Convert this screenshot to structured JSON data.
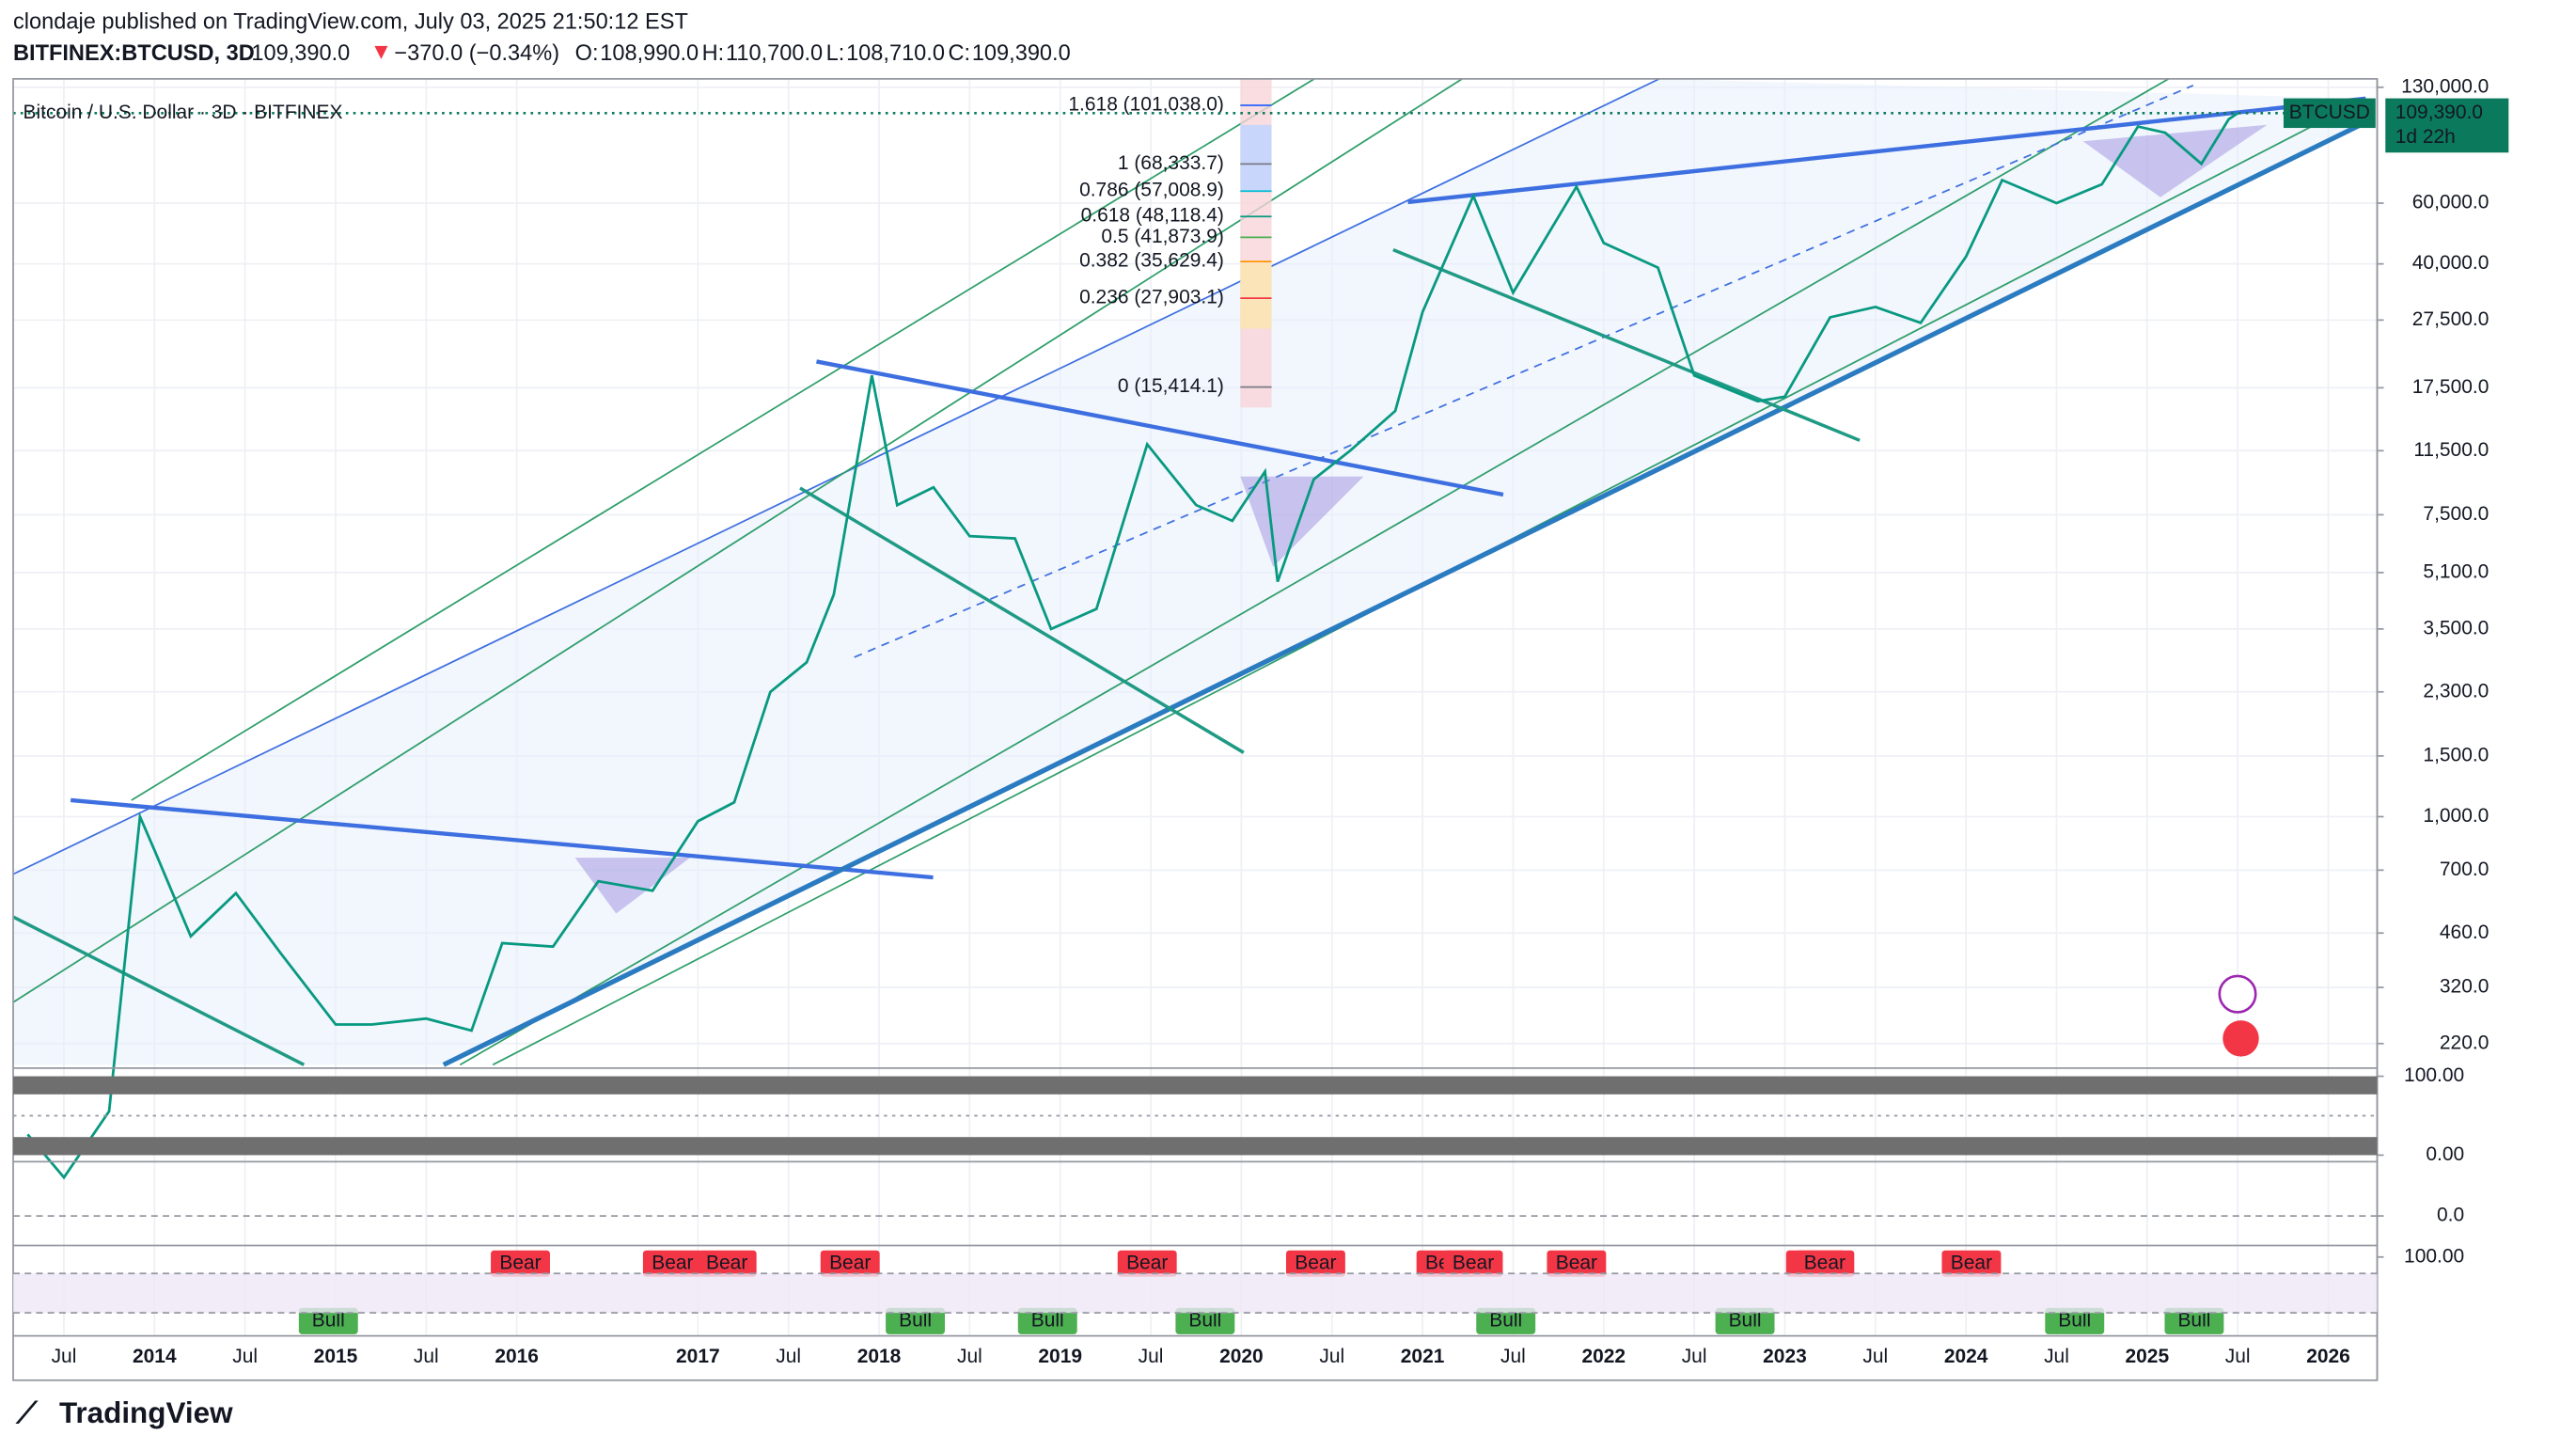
{
  "header": {
    "published": "clondaje published on TradingView.com, July 03, 2025 21:50:12 EST",
    "symbol": "BITFINEX:BTCUSD, 3D",
    "price": "109,390.0",
    "change": "−370.0 (−0.34%)",
    "ohlc": [
      {
        "key": "O:",
        "value": "108,990.0"
      },
      {
        "key": "H:",
        "value": "110,700.0"
      },
      {
        "key": "L:",
        "value": "108,710.0"
      },
      {
        "key": "C:",
        "value": "109,390.0"
      }
    ]
  },
  "footer": {
    "brand": "TradingView"
  },
  "chart_data": {
    "type": "line",
    "title": "Bitcoin / U.S. Dollar · 3D · BITFINEX",
    "log_scale": true,
    "grid": true,
    "x": [
      2013.3,
      2013.5,
      2013.75,
      2013.92,
      2014.0,
      2014.2,
      2014.45,
      2014.7,
      2015.0,
      2015.2,
      2015.5,
      2015.75,
      2015.92,
      2016.2,
      2016.45,
      2016.75,
      2017.0,
      2017.2,
      2017.4,
      2017.6,
      2017.75,
      2017.96,
      2018.1,
      2018.3,
      2018.5,
      2018.75,
      2018.95,
      2019.2,
      2019.48,
      2019.75,
      2019.95,
      2020.13,
      2020.2,
      2020.4,
      2020.6,
      2020.85,
      2021.0,
      2021.28,
      2021.5,
      2021.85,
      2022.0,
      2022.3,
      2022.5,
      2022.85,
      2023.0,
      2023.25,
      2023.5,
      2023.75,
      2024.0,
      2024.2,
      2024.5,
      2024.75,
      2024.95,
      2025.1,
      2025.3,
      2025.45,
      2025.5
    ],
    "series": [
      {
        "color": "#089981",
        "values": [
          120,
          90,
          140,
          1000,
          800,
          450,
          600,
          400,
          250,
          250,
          260,
          240,
          430,
          420,
          650,
          610,
          970,
          1100,
          2300,
          2800,
          4400,
          19000,
          8000,
          9000,
          6500,
          6400,
          3500,
          4000,
          12000,
          8000,
          7200,
          10000,
          4800,
          9500,
          11500,
          15000,
          29000,
          63000,
          33000,
          67000,
          46000,
          39000,
          19000,
          16000,
          16500,
          28000,
          30000,
          27000,
          42000,
          70000,
          60000,
          68000,
          100000,
          96000,
          78000,
          105000,
          109390
        ]
      }
    ],
    "xlim": [
      2013.22,
      2026.27
    ],
    "xticks": [
      {
        "value": 2013.5,
        "label": "Jul"
      },
      2014,
      {
        "value": 2014.5,
        "label": "Jul"
      },
      2015,
      {
        "value": 2015.5,
        "label": "Jul"
      },
      2016,
      2017,
      {
        "value": 2017.5,
        "label": "Jul"
      },
      2018,
      {
        "value": 2018.5,
        "label": "Jul"
      },
      2019,
      {
        "value": 2019.5,
        "label": "Jul"
      },
      2020,
      {
        "value": 2020.5,
        "label": "Jul"
      },
      2021,
      {
        "value": 2021.5,
        "label": "Jul"
      },
      2022,
      {
        "value": 2022.5,
        "label": "Jul"
      },
      2023,
      {
        "value": 2023.5,
        "label": "Jul"
      },
      2024,
      {
        "value": 2024.5,
        "label": "Jul"
      },
      2025,
      {
        "value": 2025.5,
        "label": "Jul"
      },
      2026
    ],
    "ylim": [
      191,
      137500
    ],
    "yticks": [
      {
        "value": 130000,
        "label": "130,000.0"
      },
      {
        "value": 60000,
        "label": "60,000.0"
      },
      {
        "value": 40000,
        "label": "40,000.0"
      },
      {
        "value": 27500,
        "label": "27,500.0"
      },
      {
        "value": 17500,
        "label": "17,500.0"
      },
      {
        "value": 11500,
        "label": "11,500.0"
      },
      {
        "value": 7500,
        "label": "7,500.0"
      },
      {
        "value": 5100,
        "label": "5,100.0"
      },
      {
        "value": 3500,
        "label": "3,500.0"
      },
      {
        "value": 2300,
        "label": "2,300.0"
      },
      {
        "value": 1500,
        "label": "1,500.0"
      },
      {
        "value": 1000,
        "label": "1,000.0"
      },
      {
        "value": 700,
        "label": "700.0"
      },
      {
        "value": 460,
        "label": "460.0"
      },
      {
        "value": 320,
        "label": "320.0"
      },
      {
        "value": 220,
        "label": "220.0"
      }
    ],
    "last_price": {
      "symbol": "BTCUSD",
      "value": 109390,
      "label": "109,390.0",
      "countdown": "1d 22h",
      "color": "#0b7a5c"
    },
    "fib_levels": [
      {
        "value": 101038,
        "label": "1.618 (101,038.0)",
        "color": "#2962ff"
      },
      {
        "value": 68333.7,
        "label": "1 (68,333.7)",
        "color": "#787b86"
      },
      {
        "value": 57008.9,
        "label": "0.786 (57,008.9)",
        "color": "#00bcd4"
      },
      {
        "value": 48118.4,
        "label": "0.618 (48,118.4)",
        "color": "#089981"
      },
      {
        "value": 41873.9,
        "label": "0.5 (41,873.9)",
        "color": "#4caf50"
      },
      {
        "value": 35629.4,
        "label": "0.382 (35,629.4)",
        "color": "#ff9800"
      },
      {
        "value": 27903.1,
        "label": "0.236 (27,903.1)",
        "color": "#f23645"
      },
      {
        "value": 15414.1,
        "label": "0 (15,414.1)",
        "color": "#787b86"
      }
    ],
    "signals": [
      {
        "x": 2016.02,
        "label": "Bear"
      },
      {
        "x": 2016.86,
        "label": "Bear"
      },
      {
        "x": 2017.16,
        "label": "Bear"
      },
      {
        "x": 2017.84,
        "label": "Bear"
      },
      {
        "x": 2019.48,
        "label": "Bear"
      },
      {
        "x": 2020.41,
        "label": "Bear"
      },
      {
        "x": 2021.13,
        "label": "Bear"
      },
      {
        "x": 2021.28,
        "label": "Bear"
      },
      {
        "x": 2021.85,
        "label": "Bear"
      },
      {
        "x": 2023.17,
        "label": "Bear"
      },
      {
        "x": 2023.22,
        "label": "Bear"
      },
      {
        "x": 2024.03,
        "label": "Bear"
      },
      {
        "x": 2014.96,
        "label": "Bull"
      },
      {
        "x": 2018.2,
        "label": "Bull"
      },
      {
        "x": 2018.93,
        "label": "Bull"
      },
      {
        "x": 2019.8,
        "label": "Bull"
      },
      {
        "x": 2021.46,
        "label": "Bull"
      },
      {
        "x": 2022.78,
        "label": "Bull"
      },
      {
        "x": 2024.6,
        "label": "Bull"
      },
      {
        "x": 2025.26,
        "label": "Bull"
      }
    ],
    "oscillators": [
      {
        "ylim": [
          0,
          100
        ],
        "yticks": [
          {
            "value": 100,
            "label": "100.00"
          },
          {
            "value": 0,
            "label": "0.00"
          }
        ]
      },
      {
        "ylim": [
          -1,
          1
        ],
        "yticks": [
          {
            "value": 0,
            "label": "0.0"
          }
        ]
      },
      {
        "ylim": [
          0,
          110
        ],
        "yticks": [
          {
            "value": 100,
            "label": "100.00"
          }
        ]
      }
    ]
  }
}
